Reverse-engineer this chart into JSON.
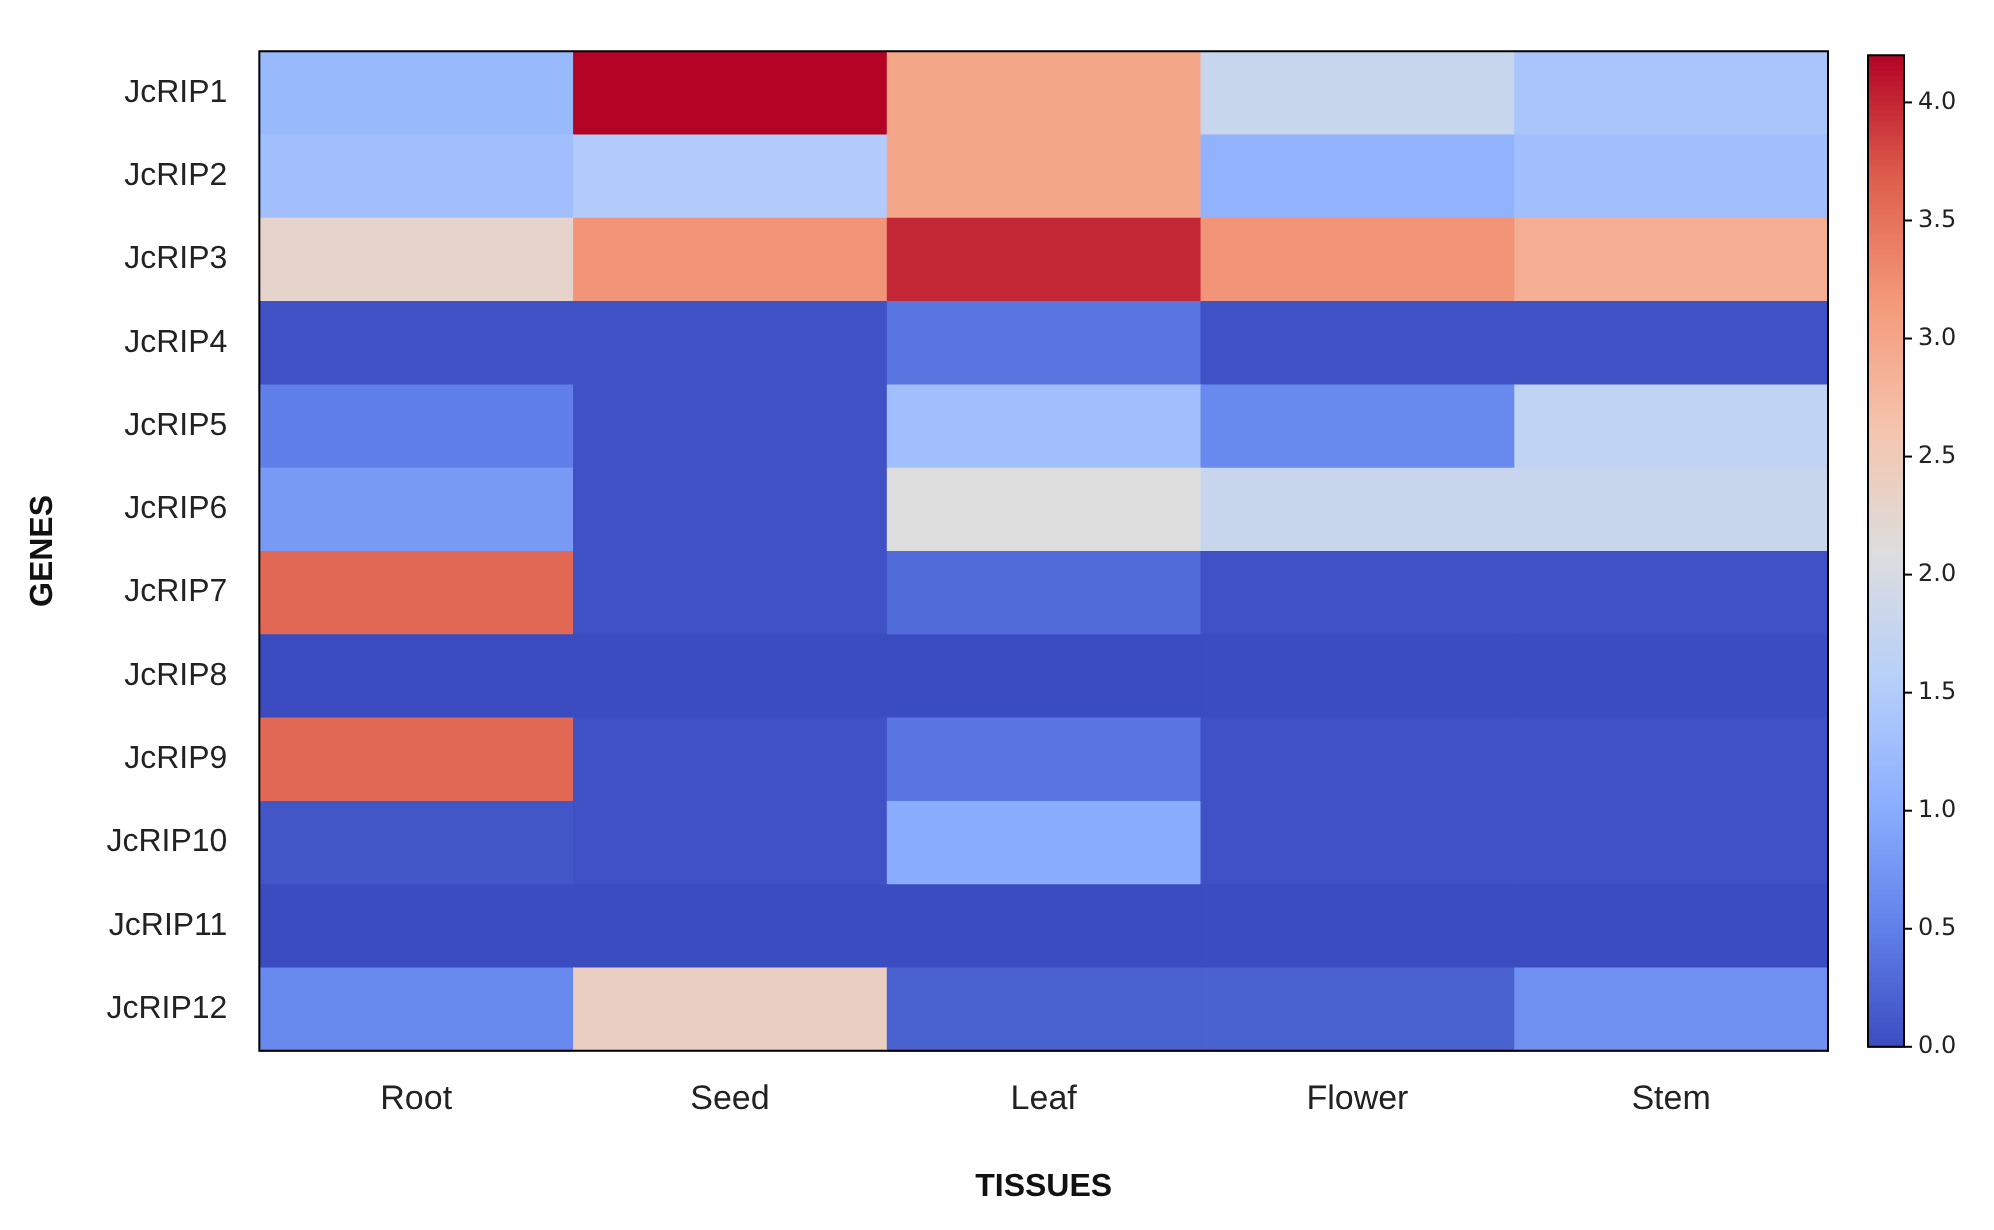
{
  "chart_data": {
    "type": "heatmap",
    "xlabel": "TISSUES",
    "ylabel": "GENES",
    "categories": [
      "Root",
      "Seed",
      "Leaf",
      "Flower",
      "Stem"
    ],
    "y_categories": [
      "JcRIP1",
      "JcRIP2",
      "JcRIP3",
      "JcRIP4",
      "JcRIP5",
      "JcRIP6",
      "JcRIP7",
      "JcRIP8",
      "JcRIP9",
      "JcRIP10",
      "JcRIP11",
      "JcRIP12"
    ],
    "cells": [
      [
        1.2,
        4.2,
        3.0,
        1.8,
        1.4
      ],
      [
        1.3,
        1.5,
        3.0,
        1.1,
        1.3
      ],
      [
        2.3,
        3.2,
        4.0,
        3.2,
        2.9
      ],
      [
        0.05,
        0.05,
        0.4,
        0.05,
        0.05
      ],
      [
        0.5,
        0.05,
        1.3,
        0.6,
        1.7
      ],
      [
        0.8,
        0.05,
        2.1,
        1.8,
        1.8
      ],
      [
        3.6,
        0.05,
        0.3,
        0.05,
        0.05
      ],
      [
        0.0,
        0.0,
        0.0,
        0.0,
        0.0
      ],
      [
        3.6,
        0.05,
        0.4,
        0.05,
        0.05
      ],
      [
        0.1,
        0.05,
        1.0,
        0.05,
        0.05
      ],
      [
        0.0,
        0.0,
        0.0,
        0.0,
        0.0
      ],
      [
        0.6,
        2.4,
        0.2,
        0.2,
        0.7
      ]
    ],
    "clim": [
      0,
      4.2
    ],
    "cticks": [
      {
        "value": 0,
        "label": "0.0"
      },
      0.5,
      {
        "value": 1,
        "label": "1.0"
      },
      1.5,
      {
        "value": 2,
        "label": "2.0"
      },
      2.5,
      {
        "value": 3,
        "label": "3.0"
      },
      3.5,
      {
        "value": 4,
        "label": "4.0"
      }
    ]
  }
}
